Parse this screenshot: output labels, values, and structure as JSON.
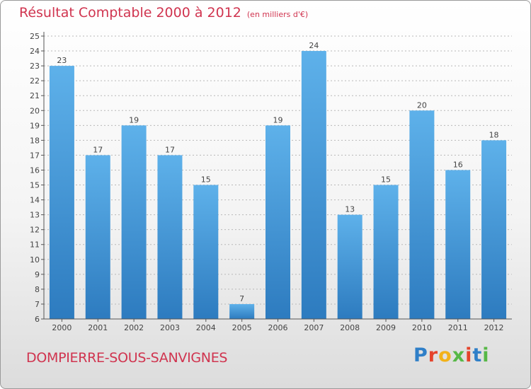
{
  "header": {
    "title": "Résultat Comptable 2000 à 2012",
    "unit": "(en milliers d'€)"
  },
  "footer": {
    "commune": "DOMPIERRE-SOUS-SANVIGNES",
    "logo": "Proxiti"
  },
  "colors": {
    "title": "#d0344f",
    "bar_top": "#5eb1ea",
    "bar_bottom": "#2d7bbf"
  },
  "chart_data": {
    "type": "bar",
    "title": "Résultat Comptable 2000 à 2012",
    "subtitle": "(en milliers d'€)",
    "categories": [
      "2000",
      "2001",
      "2002",
      "2003",
      "2004",
      "2005",
      "2006",
      "2007",
      "2008",
      "2009",
      "2010",
      "2011",
      "2012"
    ],
    "values": [
      23,
      17,
      19,
      17,
      15,
      7,
      19,
      24,
      13,
      15,
      20,
      16,
      18
    ],
    "value_labels": [
      "23",
      "17",
      "19",
      "17",
      "15",
      "7",
      "19",
      "24",
      "13",
      "15",
      "20",
      "16",
      "18"
    ],
    "y_ticks": [
      "6",
      "7",
      "8",
      "9",
      "10",
      "11",
      "12",
      "13",
      "14",
      "15",
      "16",
      "17",
      "18",
      "19",
      "20",
      "21",
      "22",
      "23",
      "24",
      "25"
    ],
    "xlabel": "",
    "ylabel": "",
    "ylim": [
      6,
      25
    ],
    "grid": true,
    "legend": "none"
  }
}
